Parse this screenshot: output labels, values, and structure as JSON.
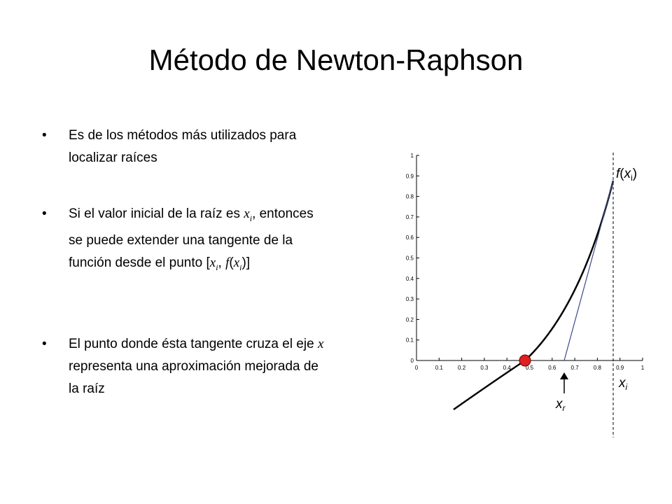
{
  "title": "Método de Newton-Raphson",
  "bullets": [
    {
      "parts": [
        "Es de los métodos más utilizados para localizar raíces"
      ]
    },
    {
      "parts": [
        "Si el valor inicial de la raíz es ",
        "x",
        "i",
        ", entonces se puede extender una tangente de la función desde el punto [",
        "x",
        "i",
        ", ",
        "f",
        "(",
        "x",
        "i",
        ")]"
      ]
    },
    {
      "parts": [
        "El punto donde ésta tangente cruza el eje ",
        "x",
        " representa una aproximación mejorada de la raíz"
      ]
    }
  ],
  "figure": {
    "xticks": [
      0,
      0.1,
      0.2,
      0.3,
      0.4,
      0.5,
      0.6,
      0.7,
      0.8,
      0.9,
      1
    ],
    "yticks": [
      0,
      0.1,
      0.2,
      0.3,
      0.4,
      0.5,
      0.6,
      0.7,
      0.8,
      0.9,
      1
    ],
    "fx_label": [
      "f",
      "(",
      "x",
      "i",
      ")"
    ],
    "xi_label": [
      "x",
      "i"
    ],
    "xr_label": [
      "x",
      "r"
    ]
  }
}
